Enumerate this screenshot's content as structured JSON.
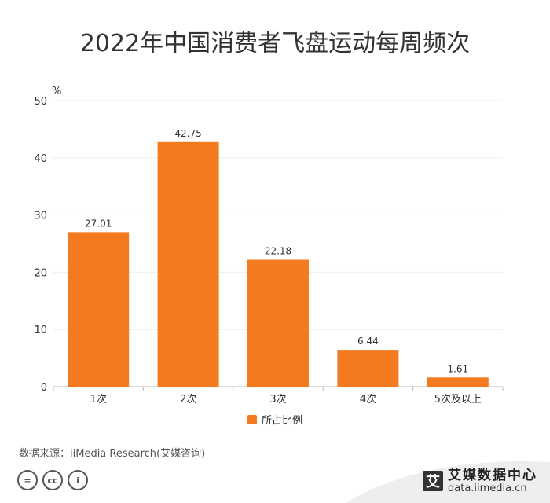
{
  "title": "2022年中国消费者飞盘运动每周频次",
  "chart_data": {
    "type": "bar",
    "title": "2022年中国消费者飞盘运动每周频次",
    "unit_label": "%",
    "categories": [
      "1次",
      "2次",
      "3次",
      "4次",
      "5次及以上"
    ],
    "series": [
      {
        "name": "所占比例",
        "values": [
          27.01,
          42.75,
          22.18,
          6.44,
          1.61
        ],
        "color": "#F47A20"
      }
    ],
    "value_labels": [
      "27.01",
      "42.75",
      "22.18",
      "6.44",
      "1.61"
    ],
    "ylim": [
      0,
      50
    ],
    "yticks": [
      "0",
      "10",
      "20",
      "30",
      "40",
      "50"
    ],
    "grid": true,
    "legend_position": "bottom-center"
  },
  "source": "数据来源：iiMedia Research(艾媒咨询)",
  "license_icons": [
    "equals-icon",
    "cc-icon",
    "person-icon"
  ],
  "license_glyphs": [
    "=",
    "cc",
    "i"
  ],
  "brand": {
    "logo_char": "艾",
    "name": "艾媒数据中心",
    "url": "data.iimedia.cn"
  }
}
